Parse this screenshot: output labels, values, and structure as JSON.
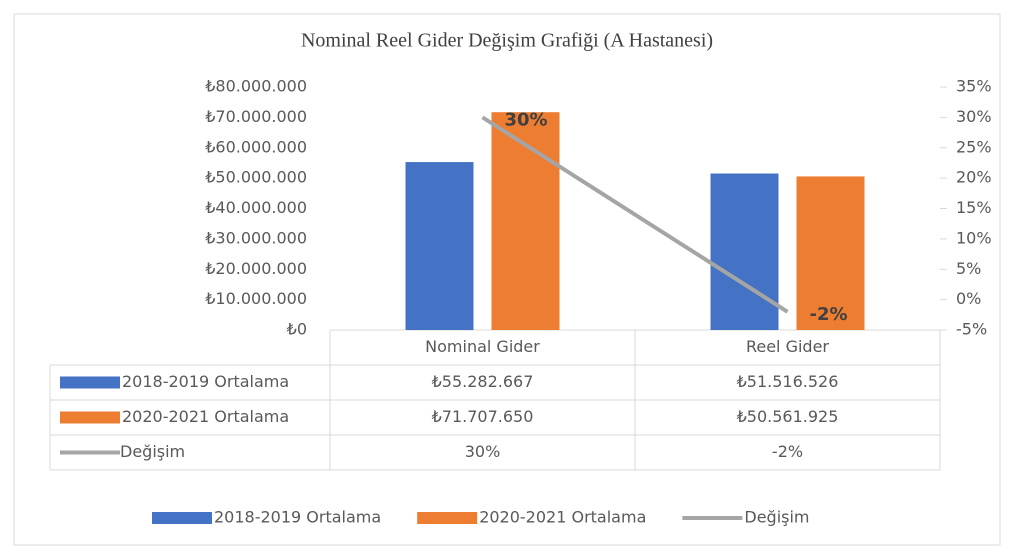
{
  "chart_data": {
    "type": "bar",
    "title": "Nominal Reel Gider Değişim Grafiği (A Hastanesi)",
    "categories": [
      "Nominal Gider",
      "Reel Gider"
    ],
    "series": [
      {
        "name": "2018-2019 Ortalama",
        "color": "#4472c4",
        "values": [
          55282667,
          51516526
        ],
        "value_labels": [
          "₺55.282.667",
          "₺51.516.526"
        ]
      },
      {
        "name": "2020-2021 Ortalama",
        "color": "#ed7d31",
        "values": [
          71707650,
          50561925
        ],
        "value_labels": [
          "₺71.707.650",
          "₺50.561.925"
        ]
      },
      {
        "name": "Değişim",
        "type": "line",
        "axis": "y2",
        "color": "#a5a5a5",
        "values": [
          30,
          -2
        ],
        "value_labels": [
          "30%",
          "-2%"
        ]
      }
    ],
    "ylim": [
      0,
      80000000
    ],
    "yticks": [
      {
        "value": 0,
        "label": "₺0"
      },
      {
        "value": 10000000,
        "label": "₺10.000.000"
      },
      {
        "value": 20000000,
        "label": "₺20.000.000"
      },
      {
        "value": 30000000,
        "label": "₺30.000.000"
      },
      {
        "value": 40000000,
        "label": "₺40.000.000"
      },
      {
        "value": 50000000,
        "label": "₺50.000.000"
      },
      {
        "value": 60000000,
        "label": "₺60.000.000"
      },
      {
        "value": 70000000,
        "label": "₺70.000.000"
      },
      {
        "value": 80000000,
        "label": "₺80.000.000"
      }
    ],
    "y2lim": [
      -5,
      35
    ],
    "y2ticks": [
      {
        "value": -5,
        "label": "-5%"
      },
      {
        "value": 0,
        "label": "0%"
      },
      {
        "value": 5,
        "label": "5%"
      },
      {
        "value": 10,
        "label": "10%"
      },
      {
        "value": 15,
        "label": "15%"
      },
      {
        "value": 20,
        "label": "20%"
      },
      {
        "value": 25,
        "label": "25%"
      },
      {
        "value": 30,
        "label": "30%"
      },
      {
        "value": 35,
        "label": "35%"
      }
    ],
    "grid": false,
    "legend": "bottom",
    "data_table": true
  }
}
